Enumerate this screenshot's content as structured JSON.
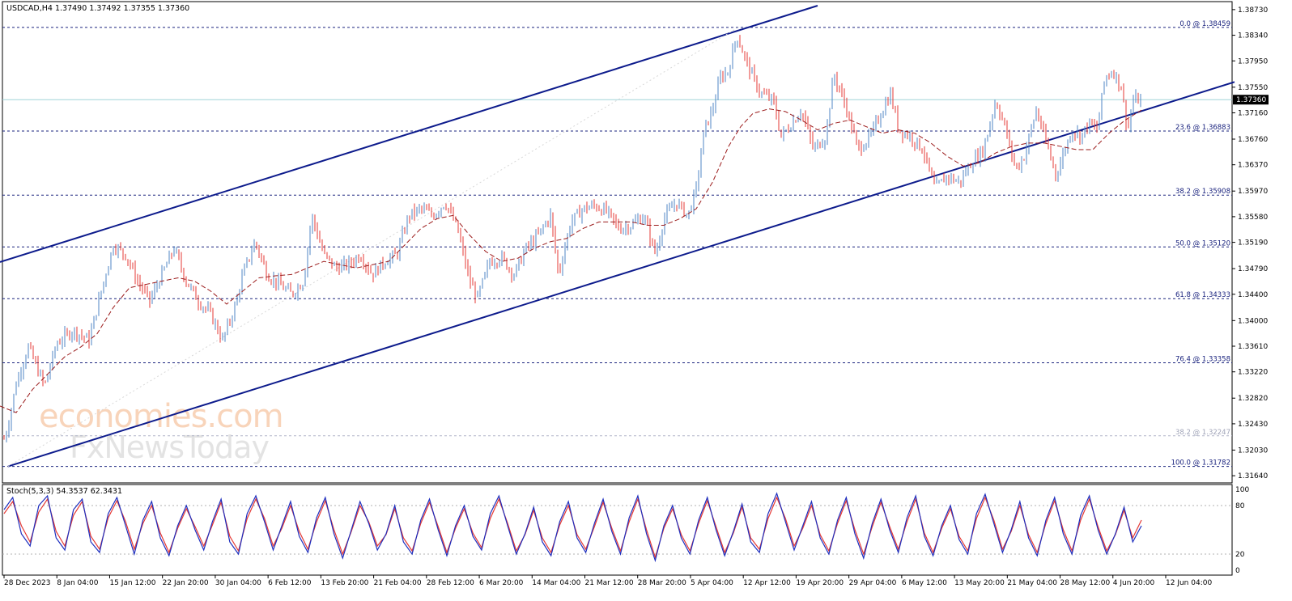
{
  "header": {
    "symbol_line": "USDCAD,H4  1.37490 1.37492 1.37355 1.37360"
  },
  "price_tag": "1.37360",
  "watermark": {
    "line1": "economies.com",
    "line2": "FxNewsToday"
  },
  "colors": {
    "bull": "#4f86c6",
    "bear": "#e53935",
    "ma": "#9b1b1b",
    "channel": "#0d1b8c",
    "fib": "#1a237e",
    "stoch_main": "#1e2fbf",
    "stoch_signal": "#e53935"
  },
  "fib_levels": [
    {
      "price": 1.38459,
      "label": "0.0 @ 1.38459"
    },
    {
      "price": 1.36883,
      "label": "23.6 @ 1.36883"
    },
    {
      "price": 1.35908,
      "label": "38.2 @ 1.35908"
    },
    {
      "price": 1.3512,
      "label": "50.0 @ 1.35120"
    },
    {
      "price": 1.34333,
      "label": "61.8 @ 1.34333"
    },
    {
      "price": 1.33358,
      "label": "76.4 @ 1.33358"
    },
    {
      "price": 1.32247,
      "label": "38.2 @ 1.32247",
      "faint": true
    },
    {
      "price": 1.31782,
      "label": "100.0 @ 1.31782"
    }
  ],
  "stoch_panel": {
    "label": "Stoch(5,3,3) 54.3537 62.3431",
    "ticks": [
      "100",
      "80",
      "20",
      "0"
    ],
    "levels": [
      80,
      20
    ],
    "main_last": 54.3537,
    "signal_last": 62.3431
  },
  "chart_data": {
    "type": "candlestick",
    "symbol": "USDCAD",
    "timeframe": "H4",
    "y_ticks": [
      "1.38730",
      "1.38340",
      "1.37950",
      "1.37550",
      "1.37160",
      "1.36760",
      "1.36370",
      "1.35970",
      "1.35580",
      "1.35190",
      "1.34790",
      "1.34400",
      "1.34000",
      "1.33610",
      "1.33220",
      "1.32820",
      "1.32430",
      "1.32030",
      "1.31640"
    ],
    "y_range": [
      1.3158,
      1.3879
    ],
    "x_ticks": [
      "28 Dec 2023",
      "8 Jan 04:00",
      "15 Jan 12:00",
      "22 Jan 20:00",
      "30 Jan 04:00",
      "6 Feb 12:00",
      "13 Feb 20:00",
      "21 Feb 04:00",
      "28 Feb 12:00",
      "6 Mar 20:00",
      "14 Mar 04:00",
      "21 Mar 12:00",
      "28 Mar 20:00",
      "5 Apr 04:00",
      "12 Apr 12:00",
      "19 Apr 20:00",
      "29 Apr 04:00",
      "6 May 12:00",
      "13 May 20:00",
      "21 May 04:00",
      "28 May 12:00",
      "4 Jun 20:00",
      "12 Jun 04:00"
    ],
    "last_price": 1.3736,
    "close_path": [
      [
        0,
        1.32
      ],
      [
        10,
        1.324
      ],
      [
        20,
        1.3305
      ],
      [
        35,
        1.336
      ],
      [
        55,
        1.33
      ],
      [
        70,
        1.3365
      ],
      [
        90,
        1.3385
      ],
      [
        110,
        1.337
      ],
      [
        125,
        1.3445
      ],
      [
        140,
        1.3515
      ],
      [
        155,
        1.35
      ],
      [
        170,
        1.346
      ],
      [
        185,
        1.343
      ],
      [
        200,
        1.347
      ],
      [
        215,
        1.351
      ],
      [
        230,
        1.346
      ],
      [
        245,
        1.343
      ],
      [
        260,
        1.341
      ],
      [
        275,
        1.337
      ],
      [
        290,
        1.342
      ],
      [
        300,
        1.347
      ],
      [
        315,
        1.352
      ],
      [
        330,
        1.347
      ],
      [
        345,
        1.3455
      ],
      [
        360,
        1.344
      ],
      [
        375,
        1.346
      ],
      [
        385,
        1.356
      ],
      [
        400,
        1.35
      ],
      [
        415,
        1.348
      ],
      [
        430,
        1.3485
      ],
      [
        445,
        1.35
      ],
      [
        460,
        1.347
      ],
      [
        475,
        1.349
      ],
      [
        490,
        1.35
      ],
      [
        505,
        1.356
      ],
      [
        520,
        1.357
      ],
      [
        535,
        1.356
      ],
      [
        550,
        1.358
      ],
      [
        565,
        1.354
      ],
      [
        580,
        1.346
      ],
      [
        590,
        1.3435
      ],
      [
        605,
        1.349
      ],
      [
        620,
        1.3495
      ],
      [
        635,
        1.347
      ],
      [
        650,
        1.351
      ],
      [
        665,
        1.353
      ],
      [
        680,
        1.356
      ],
      [
        690,
        1.347
      ],
      [
        705,
        1.355
      ],
      [
        720,
        1.357
      ],
      [
        735,
        1.3575
      ],
      [
        750,
        1.3565
      ],
      [
        765,
        1.354
      ],
      [
        780,
        1.3545
      ],
      [
        795,
        1.356
      ],
      [
        810,
        1.35
      ],
      [
        820,
        1.3555
      ],
      [
        835,
        1.358
      ],
      [
        850,
        1.356
      ],
      [
        860,
        1.36
      ],
      [
        870,
        1.369
      ],
      [
        880,
        1.372
      ],
      [
        890,
        1.377
      ],
      [
        900,
        1.378
      ],
      [
        910,
        1.3835
      ],
      [
        920,
        1.38
      ],
      [
        930,
        1.377
      ],
      [
        940,
        1.3745
      ],
      [
        955,
        1.3735
      ],
      [
        965,
        1.368
      ],
      [
        975,
        1.3695
      ],
      [
        990,
        1.372
      ],
      [
        1005,
        1.366
      ],
      [
        1020,
        1.368
      ],
      [
        1030,
        1.3775
      ],
      [
        1045,
        1.3725
      ],
      [
        1060,
        1.366
      ],
      [
        1075,
        1.368
      ],
      [
        1090,
        1.372
      ],
      [
        1100,
        1.3745
      ],
      [
        1110,
        1.369
      ],
      [
        1125,
        1.368
      ],
      [
        1140,
        1.366
      ],
      [
        1155,
        1.36
      ],
      [
        1170,
        1.362
      ],
      [
        1185,
        1.361
      ],
      [
        1200,
        1.364
      ],
      [
        1215,
        1.366
      ],
      [
        1230,
        1.3735
      ],
      [
        1240,
        1.37
      ],
      [
        1255,
        1.363
      ],
      [
        1265,
        1.365
      ],
      [
        1280,
        1.372
      ],
      [
        1290,
        1.368
      ],
      [
        1305,
        1.362
      ],
      [
        1315,
        1.366
      ],
      [
        1325,
        1.369
      ],
      [
        1335,
        1.368
      ],
      [
        1345,
        1.37
      ],
      [
        1355,
        1.369
      ],
      [
        1365,
        1.377
      ],
      [
        1375,
        1.378
      ],
      [
        1385,
        1.3755
      ],
      [
        1393,
        1.369
      ],
      [
        1400,
        1.3735
      ],
      [
        1410,
        1.3736
      ]
    ],
    "ma_path": [
      [
        0,
        1.327
      ],
      [
        20,
        1.326
      ],
      [
        40,
        1.3295
      ],
      [
        60,
        1.332
      ],
      [
        80,
        1.3345
      ],
      [
        100,
        1.336
      ],
      [
        120,
        1.338
      ],
      [
        140,
        1.342
      ],
      [
        160,
        1.345
      ],
      [
        180,
        1.3455
      ],
      [
        200,
        1.346
      ],
      [
        220,
        1.3465
      ],
      [
        240,
        1.346
      ],
      [
        260,
        1.3445
      ],
      [
        280,
        1.3425
      ],
      [
        300,
        1.3445
      ],
      [
        320,
        1.3465
      ],
      [
        340,
        1.3468
      ],
      [
        360,
        1.347
      ],
      [
        380,
        1.348
      ],
      [
        400,
        1.349
      ],
      [
        420,
        1.3485
      ],
      [
        440,
        1.348
      ],
      [
        460,
        1.3485
      ],
      [
        480,
        1.349
      ],
      [
        500,
        1.3515
      ],
      [
        520,
        1.354
      ],
      [
        540,
        1.3555
      ],
      [
        560,
        1.356
      ],
      [
        580,
        1.353
      ],
      [
        600,
        1.3505
      ],
      [
        620,
        1.349
      ],
      [
        640,
        1.3495
      ],
      [
        660,
        1.351
      ],
      [
        680,
        1.352
      ],
      [
        700,
        1.3525
      ],
      [
        720,
        1.354
      ],
      [
        740,
        1.355
      ],
      [
        760,
        1.355
      ],
      [
        780,
        1.355
      ],
      [
        800,
        1.3545
      ],
      [
        820,
        1.3545
      ],
      [
        840,
        1.3555
      ],
      [
        860,
        1.357
      ],
      [
        880,
        1.361
      ],
      [
        900,
        1.3665
      ],
      [
        915,
        1.3695
      ],
      [
        930,
        1.3715
      ],
      [
        950,
        1.3722
      ],
      [
        970,
        1.3718
      ],
      [
        990,
        1.3705
      ],
      [
        1010,
        1.369
      ],
      [
        1030,
        1.37
      ],
      [
        1050,
        1.3705
      ],
      [
        1070,
        1.3695
      ],
      [
        1090,
        1.3685
      ],
      [
        1110,
        1.369
      ],
      [
        1130,
        1.3685
      ],
      [
        1150,
        1.367
      ],
      [
        1170,
        1.365
      ],
      [
        1190,
        1.3635
      ],
      [
        1210,
        1.364
      ],
      [
        1230,
        1.3655
      ],
      [
        1250,
        1.3665
      ],
      [
        1270,
        1.367
      ],
      [
        1290,
        1.367
      ],
      [
        1310,
        1.3665
      ],
      [
        1330,
        1.366
      ],
      [
        1350,
        1.366
      ],
      [
        1370,
        1.3685
      ],
      [
        1390,
        1.3705
      ],
      [
        1410,
        1.372
      ]
    ],
    "channel_upper": [
      [
        0,
        1.3489
      ],
      [
        1010,
        1.3879
      ]
    ],
    "channel_lower": [
      [
        10,
        1.31782
      ],
      [
        1525,
        1.3763
      ]
    ],
    "stochastic_main": [
      75,
      90,
      45,
      30,
      80,
      92,
      40,
      25,
      75,
      88,
      35,
      22,
      70,
      90,
      55,
      20,
      62,
      85,
      40,
      18,
      55,
      80,
      50,
      25,
      60,
      88,
      35,
      20,
      70,
      92,
      60,
      25,
      55,
      85,
      42,
      22,
      65,
      90,
      45,
      15,
      50,
      85,
      58,
      25,
      45,
      80,
      35,
      20,
      62,
      88,
      50,
      18,
      55,
      80,
      42,
      25,
      70,
      92,
      55,
      20,
      45,
      78,
      35,
      18,
      60,
      85,
      40,
      22,
      58,
      88,
      48,
      20,
      65,
      92,
      45,
      12,
      55,
      80,
      40,
      20,
      62,
      90,
      50,
      18,
      48,
      82,
      35,
      22,
      70,
      95,
      60,
      25,
      55,
      85,
      40,
      20,
      62,
      90,
      45,
      15,
      58,
      88,
      50,
      22,
      65,
      92,
      42,
      18,
      55,
      80,
      38,
      20,
      70,
      94,
      58,
      22,
      50,
      85,
      40,
      18,
      62,
      90,
      45,
      20,
      68,
      92,
      50,
      20,
      45,
      78,
      35,
      55
    ],
    "stochastic_signal": [
      70,
      85,
      55,
      35,
      72,
      88,
      48,
      30,
      68,
      85,
      42,
      26,
      65,
      86,
      60,
      26,
      58,
      80,
      46,
      22,
      52,
      76,
      54,
      30,
      56,
      84,
      42,
      24,
      64,
      88,
      64,
      30,
      52,
      80,
      48,
      26,
      60,
      86,
      50,
      20,
      48,
      80,
      60,
      30,
      44,
      76,
      40,
      24,
      58,
      84,
      54,
      22,
      52,
      76,
      46,
      28,
      64,
      88,
      58,
      24,
      44,
      74,
      40,
      22,
      56,
      80,
      44,
      26,
      54,
      84,
      52,
      24,
      60,
      88,
      50,
      16,
      52,
      76,
      44,
      24,
      58,
      86,
      54,
      22,
      46,
      78,
      40,
      26,
      64,
      90,
      64,
      30,
      52,
      80,
      44,
      24,
      58,
      86,
      50,
      20,
      54,
      84,
      54,
      26,
      60,
      88,
      46,
      22,
      52,
      76,
      42,
      24,
      64,
      90,
      62,
      26,
      48,
      80,
      44,
      22,
      58,
      86,
      50,
      24,
      62,
      88,
      54,
      24,
      44,
      74,
      40,
      62
    ]
  }
}
